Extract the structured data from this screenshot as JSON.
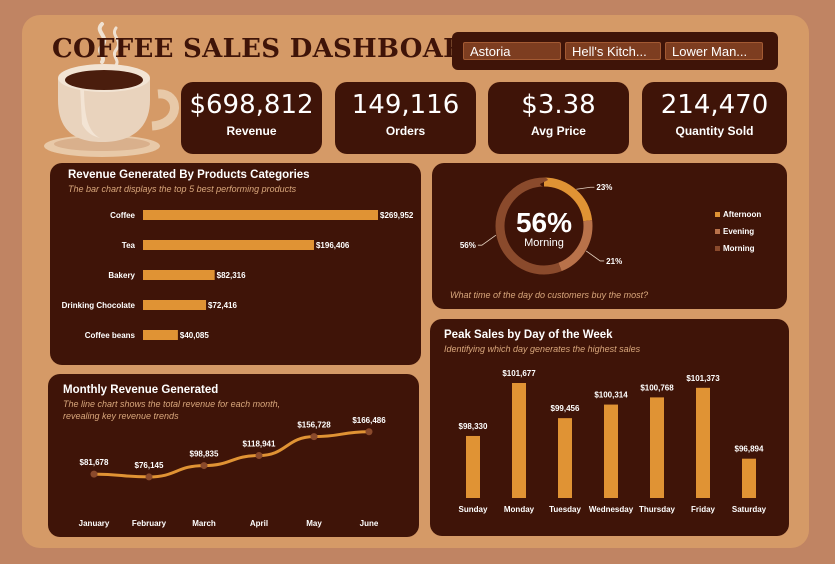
{
  "dashboard": {
    "title": "COFFEE SALES DASHBOARD"
  },
  "slicers": [
    "Astoria",
    "Hell's Kitch...",
    "Lower Man..."
  ],
  "kpis": [
    {
      "value": "$698,812",
      "label": "Revenue"
    },
    {
      "value": "149,116",
      "label": "Orders"
    },
    {
      "value": "$3.38",
      "label": "Avg Price"
    },
    {
      "value": "214,470",
      "label": "Quantity Sold"
    }
  ],
  "colors": {
    "bar": "#e09334",
    "panel": "#3f1408",
    "board": "#d59a67",
    "afternoon": "#e09334",
    "evening": "#b9724a",
    "morning": "#8a4a2c"
  },
  "chart_data": [
    {
      "type": "bar",
      "orientation": "horizontal",
      "title": "Revenue Generated By Products Categories",
      "subtitle": "The bar chart displays the top 5 best performing products",
      "categories": [
        "Coffee",
        "Tea",
        "Bakery",
        "Drinking Chocolate",
        "Coffee beans"
      ],
      "values": [
        269952,
        196406,
        82316,
        72416,
        40085
      ],
      "value_labels": [
        "$269,952",
        "$196,406",
        "$82,316",
        "$72,416",
        "$40,085"
      ],
      "xlim": [
        0,
        269952
      ]
    },
    {
      "type": "pie",
      "variant": "donut",
      "caption": "What time of the day do customers buy the most?",
      "center_value": "56%",
      "center_label": "Morning",
      "slices": [
        {
          "name": "Afternoon",
          "value": 23,
          "label": "23%"
        },
        {
          "name": "Evening",
          "value": 21,
          "label": "21%"
        },
        {
          "name": "Morning",
          "value": 56,
          "label": "56%"
        }
      ],
      "legend": "right"
    },
    {
      "type": "line",
      "title": "Monthly Revenue Generated",
      "subtitle": "The line chart shows the total revenue for each month, revealing key revenue trends",
      "categories": [
        "January",
        "February",
        "March",
        "April",
        "May",
        "June"
      ],
      "values": [
        81678,
        76145,
        98835,
        118941,
        156728,
        166486
      ],
      "value_labels": [
        "$81,678",
        "$76,145",
        "$98,835",
        "$118,941",
        "$156,728",
        "$166,486"
      ]
    },
    {
      "type": "bar",
      "orientation": "vertical",
      "title": "Peak Sales by Day of the Week",
      "subtitle": "Identifying which day generates the highest sales",
      "categories": [
        "Sunday",
        "Monday",
        "Tuesday",
        "Wednesday",
        "Thursday",
        "Friday",
        "Saturday"
      ],
      "values": [
        98330,
        101677,
        99456,
        100314,
        100768,
        101373,
        96894
      ],
      "value_labels": [
        "$98,330",
        "$101,677",
        "$99,456",
        "$100,314",
        "$100,768",
        "$101,373",
        "$96,894"
      ]
    }
  ]
}
